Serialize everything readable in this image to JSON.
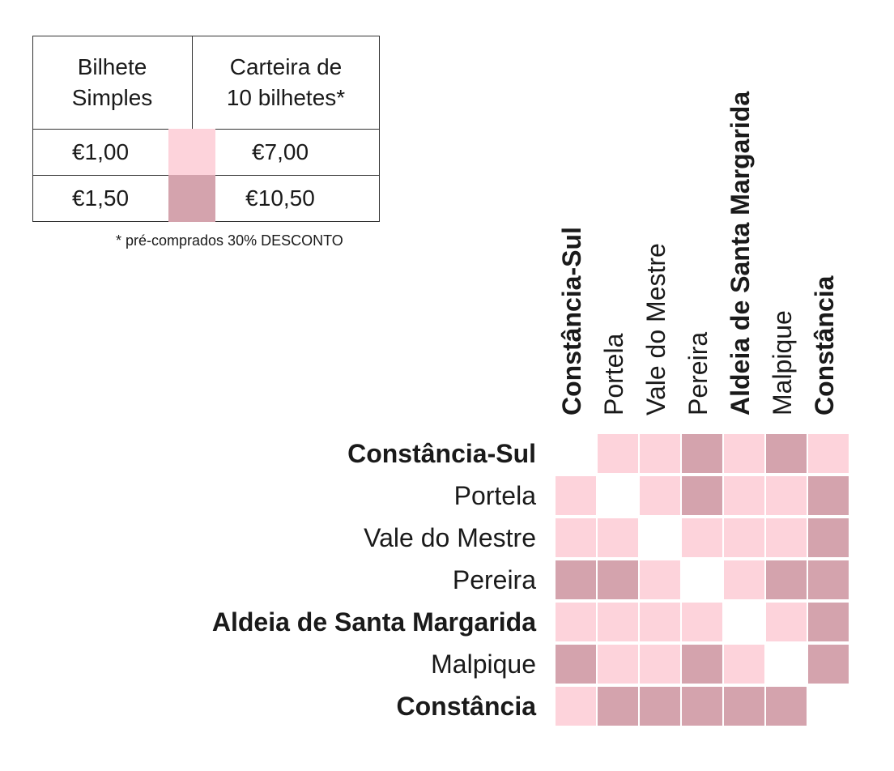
{
  "legend": {
    "headers": [
      "Bilhete\nSimples",
      "Carteira de\n10 bilhetes*"
    ],
    "rows": [
      {
        "simple": "€1,00",
        "pack": "€7,00",
        "color": "#fdd3db",
        "level": 1
      },
      {
        "simple": "€1,50",
        "pack": "€10,50",
        "color": "#d4a3ad",
        "level": 2
      }
    ],
    "footnote": "* pré-comprados 30% DESCONTO"
  },
  "stops": [
    {
      "name": "Constância-Sul",
      "bold": true
    },
    {
      "name": "Portela",
      "bold": false
    },
    {
      "name": "Vale do Mestre",
      "bold": false
    },
    {
      "name": "Pereira",
      "bold": false
    },
    {
      "name": "Aldeia de Santa Margarida",
      "bold": true
    },
    {
      "name": "Malpique",
      "bold": false
    },
    {
      "name": "Constância",
      "bold": true
    }
  ],
  "colors": {
    "level1": "#fdd3db",
    "level2": "#d4a3ad"
  },
  "matrix": [
    [
      0,
      1,
      1,
      2,
      1,
      2,
      1
    ],
    [
      1,
      0,
      1,
      2,
      1,
      1,
      2
    ],
    [
      1,
      1,
      0,
      1,
      1,
      1,
      2
    ],
    [
      2,
      2,
      1,
      0,
      1,
      2,
      2
    ],
    [
      1,
      1,
      1,
      1,
      0,
      1,
      2
    ],
    [
      2,
      1,
      1,
      2,
      1,
      0,
      2
    ],
    [
      1,
      2,
      2,
      2,
      2,
      2,
      0
    ]
  ]
}
